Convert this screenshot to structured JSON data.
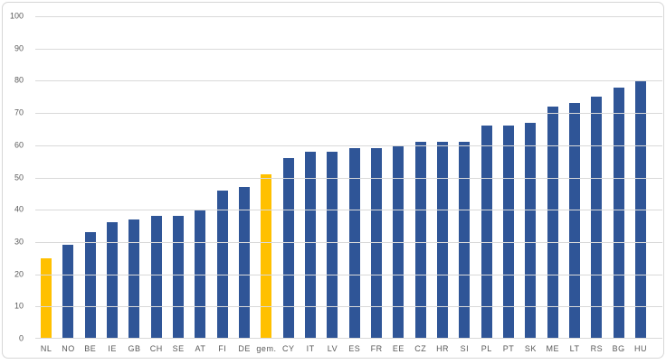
{
  "chart_data": {
    "type": "bar",
    "title": "",
    "xlabel": "",
    "ylabel": "",
    "categories": [
      "NL",
      "NO",
      "BE",
      "IE",
      "GB",
      "CH",
      "SE",
      "AT",
      "FI",
      "DE",
      "gem.",
      "CY",
      "IT",
      "LV",
      "ES",
      "FR",
      "EE",
      "CZ",
      "HR",
      "SI",
      "PL",
      "PT",
      "SK",
      "ME",
      "LT",
      "RS",
      "BG",
      "HU"
    ],
    "values": [
      25,
      29,
      33,
      36,
      37,
      38,
      38,
      40,
      46,
      47,
      51,
      56,
      58,
      58,
      59,
      59,
      60,
      61,
      61,
      61,
      66,
      66,
      67,
      72,
      73,
      75,
      78,
      80
    ],
    "highlighted_categories": [
      "NL",
      "gem."
    ],
    "bar_color": "#2F5597",
    "highlight_color": "#FFC000",
    "ylim": [
      0,
      100
    ],
    "yticks": [
      0,
      10,
      20,
      30,
      40,
      50,
      60,
      70,
      80,
      90,
      100
    ],
    "grid": true,
    "gridline_color": "#D9D9D9",
    "axis_line_color": "#D9D9D9",
    "tick_label_color": "#595959",
    "frame_border_color": "#D6D6D6",
    "legend_position": "none"
  }
}
